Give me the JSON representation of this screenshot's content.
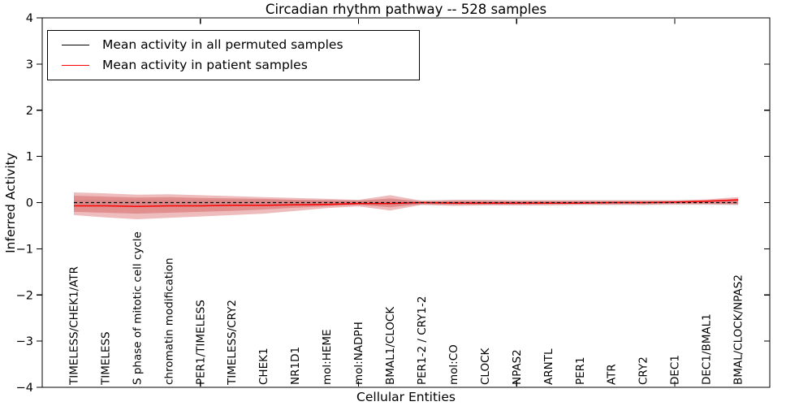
{
  "chart_data": {
    "type": "line",
    "title": "Circadian rhythm pathway -- 528 samples",
    "xlabel": "Cellular Entities",
    "ylabel": "Inferred Activity",
    "ylim": [
      -4,
      4
    ],
    "yticks": [
      -4,
      -3,
      -2,
      -1,
      0,
      1,
      2,
      3,
      4
    ],
    "xlim": [
      0,
      23
    ],
    "x_axis_tick_positions": [
      5,
      10,
      15,
      20
    ],
    "grid": false,
    "legend_position": "upper left",
    "categories": [
      "TIMELESS/CHEK1/ATR",
      "TIMELESS",
      "S phase of mitotic cell cycle",
      "chromatin modification",
      "PER1/TIMELESS",
      "TIMELESS/CRY2",
      "CHEK1",
      "NR1D1",
      "mol:HEME",
      "mol:NADPH",
      "BMAL1/CLOCK",
      "PER1-2 / CRY1-2",
      "mol:CO",
      "CLOCK",
      "NPAS2",
      "ARNTL",
      "PER1",
      "ATR",
      "CRY2",
      "DEC1",
      "DEC1/BMAL1",
      "BMAL/CLOCK/NPAS2"
    ],
    "legend": {
      "entries": [
        {
          "label": "Mean activity in all permuted samples",
          "color": "#000000",
          "linestyle": "dashed"
        },
        {
          "label": "Mean activity in patient samples",
          "color": "#ff0000",
          "linestyle": "solid"
        }
      ]
    },
    "series": [
      {
        "name": "Mean activity in all permuted samples",
        "color": "#000000",
        "linestyle": "dashed",
        "values": [
          0,
          0,
          0,
          0,
          0,
          0,
          0,
          0,
          0,
          0,
          0,
          0,
          0,
          0,
          0,
          0,
          0,
          0,
          0,
          0,
          0,
          0
        ]
      },
      {
        "name": "Mean activity in patient samples",
        "color": "#ff0000",
        "linestyle": "solid",
        "values": [
          -0.07,
          -0.07,
          -0.08,
          -0.07,
          -0.07,
          -0.06,
          -0.06,
          -0.05,
          -0.04,
          -0.02,
          -0.02,
          0.0,
          -0.01,
          -0.01,
          -0.01,
          -0.01,
          -0.01,
          0.0,
          0.0,
          0.01,
          0.03,
          0.06
        ]
      }
    ],
    "bands": [
      {
        "name": "permuted-activity-range",
        "color": "#000000",
        "opacity": 0.07,
        "upper": [
          0.06,
          0.06,
          0.06,
          0.06,
          0.06,
          0.06,
          0.06,
          0.06,
          0.06,
          0.06,
          0.06,
          0.06,
          0.06,
          0.06,
          0.06,
          0.06,
          0.06,
          0.06,
          0.06,
          0.06,
          0.06,
          0.06
        ],
        "lower": [
          -0.06,
          -0.06,
          -0.06,
          -0.06,
          -0.06,
          -0.06,
          -0.06,
          -0.06,
          -0.06,
          -0.06,
          -0.06,
          -0.06,
          -0.06,
          -0.06,
          -0.06,
          -0.06,
          -0.06,
          -0.06,
          -0.06,
          -0.06,
          -0.06,
          -0.06
        ]
      },
      {
        "name": "patient-activity-range-outer",
        "color": "#cc3333",
        "opacity": 0.33,
        "upper": [
          0.22,
          0.2,
          0.17,
          0.18,
          0.16,
          0.14,
          0.12,
          0.1,
          0.08,
          0.06,
          0.16,
          0.04,
          0.06,
          0.06,
          0.05,
          0.05,
          0.05,
          0.05,
          0.05,
          0.05,
          0.07,
          0.12
        ],
        "lower": [
          -0.27,
          -0.32,
          -0.36,
          -0.33,
          -0.3,
          -0.27,
          -0.24,
          -0.18,
          -0.12,
          -0.08,
          -0.17,
          -0.05,
          -0.07,
          -0.06,
          -0.06,
          -0.06,
          -0.05,
          -0.05,
          -0.05,
          -0.04,
          -0.04,
          -0.05
        ]
      },
      {
        "name": "patient-activity-range-inner",
        "color": "#cc3333",
        "opacity": 0.33,
        "upper": [
          0.15,
          0.13,
          0.11,
          0.12,
          0.1,
          0.09,
          0.08,
          0.06,
          0.05,
          0.04,
          0.09,
          0.02,
          0.03,
          0.03,
          0.03,
          0.03,
          0.03,
          0.03,
          0.03,
          0.03,
          0.04,
          0.08
        ],
        "lower": [
          -0.2,
          -0.22,
          -0.24,
          -0.22,
          -0.2,
          -0.18,
          -0.15,
          -0.11,
          -0.08,
          -0.05,
          -0.1,
          -0.03,
          -0.04,
          -0.04,
          -0.04,
          -0.03,
          -0.03,
          -0.03,
          -0.03,
          -0.02,
          -0.02,
          -0.03
        ]
      }
    ],
    "colors": {
      "frame": "#000000",
      "background": "#ffffff",
      "accent": "#ff0000"
    }
  }
}
